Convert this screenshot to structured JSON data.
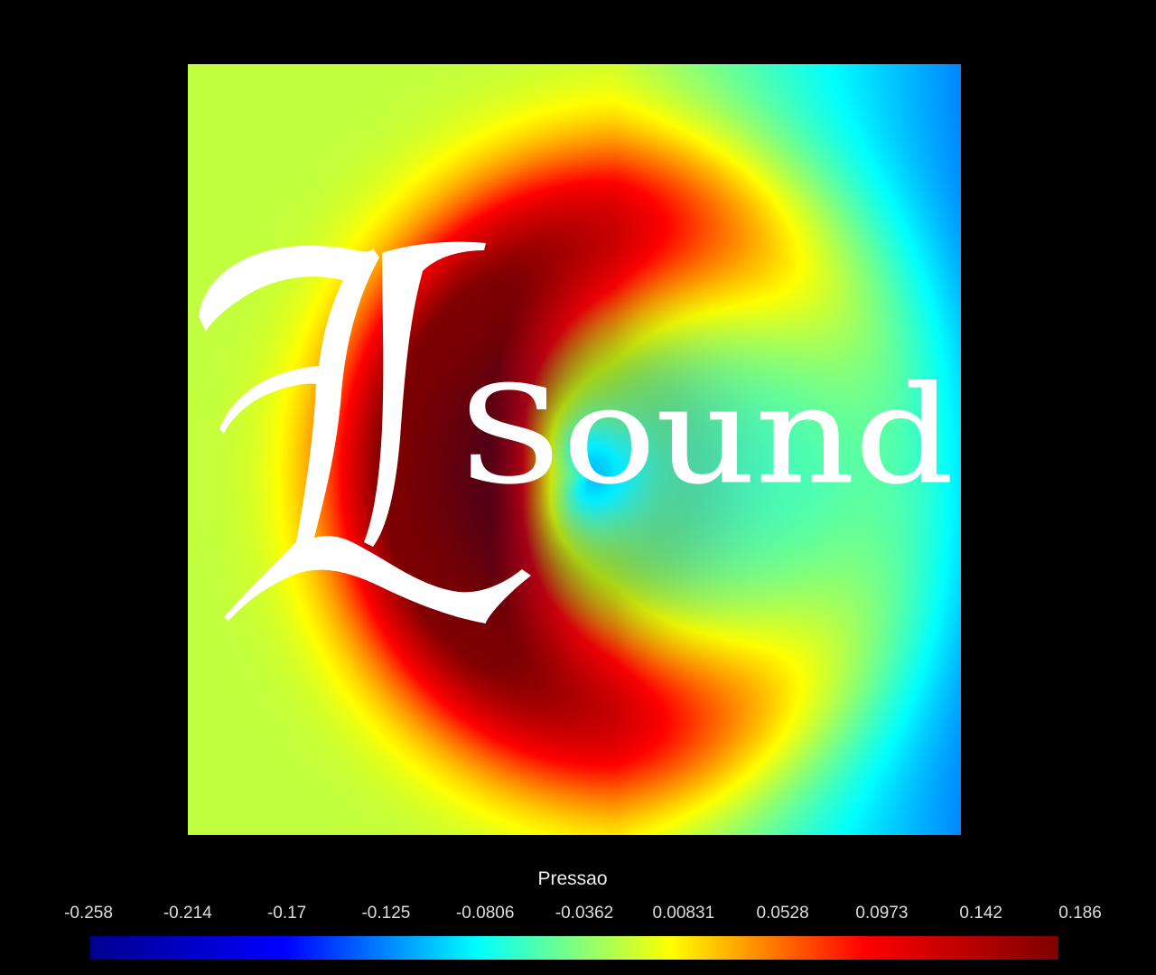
{
  "chart_data": {
    "type": "heatmap",
    "title": "",
    "colorbar": {
      "label": "Pressao",
      "ticks": [
        "-0.258",
        "-0.214",
        "-0.17",
        "-0.125",
        "-0.0806",
        "-0.0362",
        "0.00831",
        "0.0528",
        "0.0973",
        "0.142",
        "0.186"
      ],
      "range": [
        -0.258,
        0.186
      ],
      "colormap": "jet",
      "colors": [
        "#00008f",
        "#0000ff",
        "#00ffff",
        "#ffff00",
        "#ff0000",
        "#800000"
      ]
    },
    "field_description": "pressure field: high (red) ring around a low (blue) center, decreasing to blue on right edge, yellow on left edge",
    "grid": false
  },
  "logo": {
    "initial": "L",
    "word": "Sound"
  }
}
